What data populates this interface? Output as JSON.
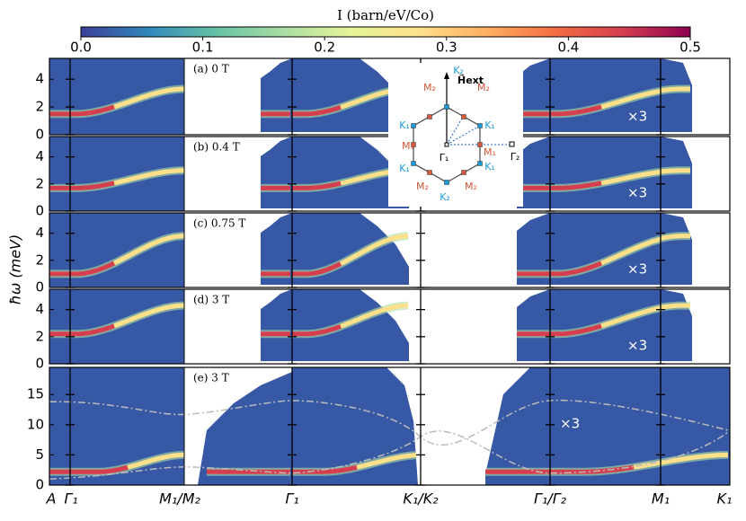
{
  "chart_data": {
    "type": "heatmap",
    "colorbar": {
      "label": "I (barn/eV/Co)",
      "lim": [
        0,
        0.5
      ],
      "ticks": [
        {
          "value": 0,
          "label": "0.0"
        },
        0.1,
        0.2,
        0.3,
        0.4,
        0.5
      ],
      "colormap": [
        "#3b3f97",
        "#3288bd",
        "#66c2a5",
        "#abdda4",
        "#e6f598",
        "#fee08b",
        "#fdae61",
        "#f46d43",
        "#d53e4f",
        "#8e0152"
      ]
    },
    "ylabel": "ħω (meV)",
    "x_labels": [
      "A",
      "Γ₁",
      "M₁/M₂",
      "Γ₁",
      "K₁/K₂",
      "Γ₁/Γ₂",
      "M₁",
      "K₁"
    ],
    "panels": [
      {
        "label": "(a) 0 T",
        "ylim": [
          0,
          5.5
        ],
        "yticks": [
          0,
          2,
          4
        ],
        "scale_label": "×3"
      },
      {
        "label": "(b) 0.4 T",
        "ylim": [
          0,
          5.5
        ],
        "yticks": [
          0,
          2,
          4
        ],
        "scale_label": "×3"
      },
      {
        "label": "(c) 0.75 T",
        "ylim": [
          0,
          5.5
        ],
        "yticks": [
          0,
          2,
          4
        ],
        "scale_label": "×3"
      },
      {
        "label": "(d) 3 T",
        "ylim": [
          0,
          5.5
        ],
        "yticks": [
          0,
          2,
          4
        ],
        "scale_label": "×3"
      },
      {
        "label": "(e) 3 T",
        "ylim": [
          0,
          19.5
        ],
        "yticks": [
          0,
          5,
          10,
          15
        ],
        "scale_label": "×3"
      }
    ],
    "inset": {
      "field_label": "H⃗ext",
      "labels": [
        {
          "text": "K₂",
          "color": "#1a9bd7"
        },
        {
          "text": "M₂",
          "color": "#d4583a"
        },
        {
          "text": "M₂",
          "color": "#d4583a"
        },
        {
          "text": "K₁",
          "color": "#1a9bd7"
        },
        {
          "text": "K₁",
          "color": "#1a9bd7"
        },
        {
          "text": "M₁",
          "color": "#d4583a"
        },
        {
          "text": "M₁",
          "color": "#d4583a"
        },
        {
          "text": "Γ₁",
          "color": "#000000"
        },
        {
          "text": "Γ₂",
          "color": "#000000"
        },
        {
          "text": "K₁",
          "color": "#1a9bd7"
        },
        {
          "text": "K₁",
          "color": "#1a9bd7"
        },
        {
          "text": "M₂",
          "color": "#d4583a"
        },
        {
          "text": "M₂",
          "color": "#d4583a"
        },
        {
          "text": "K₂",
          "color": "#1a9bd7"
        }
      ]
    }
  }
}
